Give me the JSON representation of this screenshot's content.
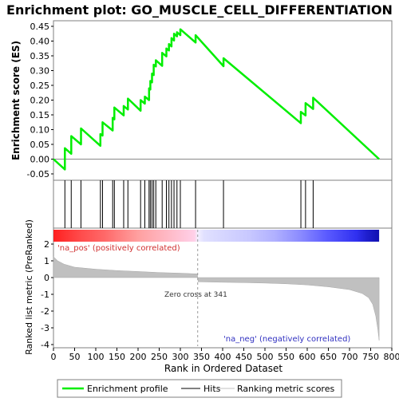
{
  "title": "Enrichment plot: GO_MUSCLE_CELL_DIFFERENTIATION",
  "ylabel_top": "Enrichment score (ES)",
  "ylabel_bottom": "Ranked list metric (PreRanked)",
  "xlabel": "Rank in Ordered Dataset",
  "pos_label": "'na_pos' (positively correlated)",
  "neg_label": "'na_neg' (negatively correlated)",
  "zero_cross_label": "Zero cross at 341",
  "legend": {
    "profile": "Enrichment profile",
    "hits": "Hits",
    "metric": "Ranking metric scores"
  },
  "colors": {
    "profile": "#00ee00",
    "hits": "#000000",
    "metric_fill": "#c0c0c0",
    "pos_text": "#d03030",
    "neg_text": "#3030c0",
    "frame": "#7f7f7f"
  },
  "chart_data": {
    "type": "line",
    "n_genes": 770,
    "zero_cross": 341,
    "xlim": [
      0,
      800
    ],
    "x_ticks": [
      0,
      50,
      100,
      150,
      200,
      250,
      300,
      350,
      400,
      450,
      500,
      550,
      600,
      650,
      700,
      750,
      800
    ],
    "es_ylim": [
      -0.05,
      0.45
    ],
    "es_ticks": [
      -0.05,
      0.0,
      0.05,
      0.1,
      0.15,
      0.2,
      0.25,
      0.3,
      0.35,
      0.4,
      0.45
    ],
    "metric_ylim": [
      -4,
      2
    ],
    "metric_ticks": [
      -4,
      -3,
      -2,
      -1,
      0,
      1,
      2
    ],
    "hits": [
      27,
      42,
      65,
      111,
      116,
      140,
      144,
      166,
      176,
      206,
      216,
      226,
      229,
      233,
      237,
      242,
      257,
      267,
      273,
      279,
      285,
      292,
      300,
      336,
      402,
      585,
      596,
      614
    ],
    "es_profile": [
      [
        0,
        0.0
      ],
      [
        27,
        -0.035
      ],
      [
        27,
        0.037
      ],
      [
        42,
        0.018
      ],
      [
        42,
        0.078
      ],
      [
        65,
        0.05
      ],
      [
        65,
        0.104
      ],
      [
        111,
        0.045
      ],
      [
        111,
        0.085
      ],
      [
        116,
        0.08
      ],
      [
        116,
        0.125
      ],
      [
        140,
        0.097
      ],
      [
        140,
        0.14
      ],
      [
        144,
        0.135
      ],
      [
        144,
        0.175
      ],
      [
        166,
        0.148
      ],
      [
        166,
        0.18
      ],
      [
        176,
        0.168
      ],
      [
        176,
        0.205
      ],
      [
        206,
        0.164
      ],
      [
        206,
        0.2
      ],
      [
        216,
        0.188
      ],
      [
        216,
        0.212
      ],
      [
        226,
        0.2
      ],
      [
        226,
        0.24
      ],
      [
        229,
        0.236
      ],
      [
        229,
        0.265
      ],
      [
        233,
        0.26
      ],
      [
        233,
        0.29
      ],
      [
        237,
        0.285
      ],
      [
        237,
        0.32
      ],
      [
        242,
        0.314
      ],
      [
        242,
        0.335
      ],
      [
        257,
        0.316
      ],
      [
        257,
        0.36
      ],
      [
        267,
        0.348
      ],
      [
        267,
        0.375
      ],
      [
        273,
        0.368
      ],
      [
        273,
        0.39
      ],
      [
        279,
        0.382
      ],
      [
        279,
        0.41
      ],
      [
        285,
        0.402
      ],
      [
        285,
        0.425
      ],
      [
        292,
        0.416
      ],
      [
        292,
        0.43
      ],
      [
        300,
        0.42
      ],
      [
        300,
        0.44
      ],
      [
        336,
        0.395
      ],
      [
        336,
        0.42
      ],
      [
        402,
        0.315
      ],
      [
        402,
        0.342
      ],
      [
        585,
        0.122
      ],
      [
        585,
        0.16
      ],
      [
        596,
        0.148
      ],
      [
        596,
        0.19
      ],
      [
        614,
        0.17
      ],
      [
        614,
        0.208
      ],
      [
        770,
        0.0
      ]
    ],
    "metric_curve": [
      [
        0,
        1.25
      ],
      [
        10,
        1.0
      ],
      [
        25,
        0.8
      ],
      [
        50,
        0.62
      ],
      [
        100,
        0.5
      ],
      [
        150,
        0.42
      ],
      [
        200,
        0.36
      ],
      [
        250,
        0.3
      ],
      [
        300,
        0.26
      ],
      [
        340,
        0.22
      ],
      [
        341,
        0.0
      ],
      [
        342,
        -0.25
      ],
      [
        400,
        -0.28
      ],
      [
        450,
        -0.3
      ],
      [
        500,
        -0.33
      ],
      [
        550,
        -0.37
      ],
      [
        600,
        -0.44
      ],
      [
        650,
        -0.55
      ],
      [
        700,
        -0.72
      ],
      [
        730,
        -0.95
      ],
      [
        745,
        -1.2
      ],
      [
        755,
        -1.6
      ],
      [
        762,
        -2.3
      ],
      [
        767,
        -3.1
      ],
      [
        770,
        -3.75
      ]
    ]
  }
}
